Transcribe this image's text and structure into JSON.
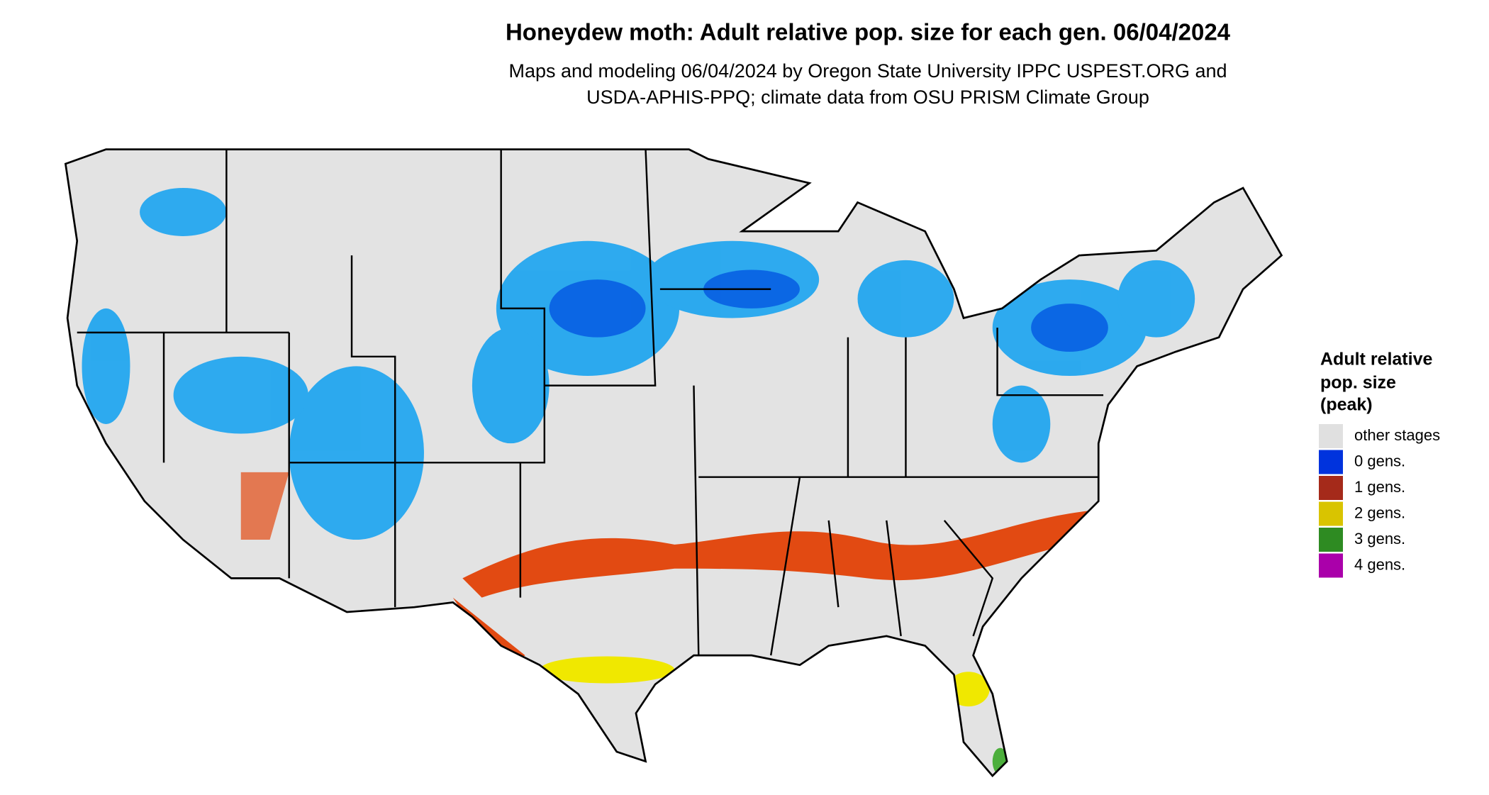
{
  "header": {
    "title": "Honeydew moth: Adult relative pop. size for each gen. 06/04/2024",
    "subtitle": [
      "Maps and modeling 06/04/2024 by Oregon State University IPPC USPEST.ORG and",
      "USDA-APHIS-PPQ; climate data from OSU PRISM Climate Group"
    ]
  },
  "legend": {
    "title": [
      "Adult relative",
      "pop. size",
      "(peak)"
    ],
    "items": [
      {
        "label": "other stages",
        "color": "#e0e0e0"
      },
      {
        "label": "0 gens.",
        "color": "#0033dd"
      },
      {
        "label": "1 gens.",
        "color": "#a52a1a"
      },
      {
        "label": "2 gens.",
        "color": "#d9c400"
      },
      {
        "label": "3 gens.",
        "color": "#2e8b22"
      },
      {
        "label": "4 gens.",
        "color": "#aa00aa"
      }
    ]
  }
}
